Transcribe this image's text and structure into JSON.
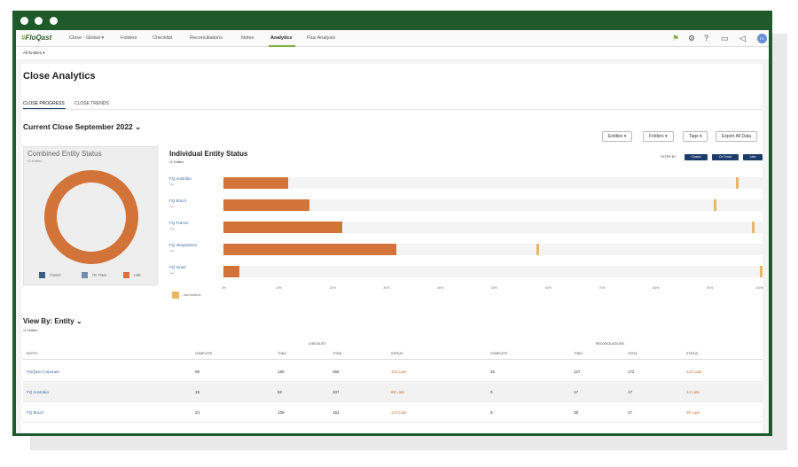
{
  "nav": {
    "logo_hash": "#",
    "logo_text": "FloQast",
    "items": [
      {
        "label": "Close - Global ▾"
      },
      {
        "label": "Folders"
      },
      {
        "label": "Checklist"
      },
      {
        "label": "Reconciliations"
      },
      {
        "label": "Notes"
      },
      {
        "label": "Analytics"
      },
      {
        "label": "Flux Analysis"
      }
    ],
    "icons": [
      "flag-icon",
      "gear-icon",
      "help-icon",
      "book-icon",
      "megaphone-icon"
    ],
    "avatar": "FL"
  },
  "subbar": {
    "entities_select": "All Entities ▾"
  },
  "page": {
    "title": "Close Analytics",
    "tabs": [
      {
        "label": "CLOSE PROGRESS"
      },
      {
        "label": "CLOSE TRENDS"
      }
    ],
    "current_close": "Current Close  September 2022 ⌄"
  },
  "buttons": {
    "entities": "Entities ▾",
    "folders": "Folders ▾",
    "tags": "Tags ▾",
    "export": "Export All Data"
  },
  "combined": {
    "title": "Combined Entity Status",
    "sub": "11 Entities",
    "legend": [
      {
        "label": "Closed",
        "color": "#3f5d86"
      },
      {
        "label": "On Track",
        "color": "#6f8fb3"
      },
      {
        "label": "Late",
        "color": "#d2733a"
      }
    ],
    "donut_color": "#d2733a"
  },
  "individual": {
    "title": "Individual Entity Status",
    "sub": "11 Entities",
    "filter_label": "FILTER BY",
    "chips": [
      "Closed",
      "On Track",
      "Late"
    ],
    "entities": [
      {
        "name": "FQ Australia",
        "status": "Late",
        "progress": 12,
        "last_deadline": 95
      },
      {
        "name": "FQ Brazil",
        "status": "Late",
        "progress": 16,
        "last_deadline": 91
      },
      {
        "name": "FQ France",
        "status": "Late",
        "progress": 22,
        "last_deadline": 98
      },
      {
        "name": "FQ Integrations",
        "status": "Late",
        "progress": 32,
        "last_deadline": 58
      },
      {
        "name": "FQ Israel",
        "status": "Late",
        "progress": 3,
        "last_deadline": 100
      }
    ],
    "x_ticks": [
      "0%",
      "10%",
      "20%",
      "30%",
      "40%",
      "50%",
      "60%",
      "70%",
      "80%",
      "90%",
      "100%"
    ],
    "last_deadline_label": "last deadline",
    "fill_color": "#d2733a",
    "marker_color": "#e8b665"
  },
  "viewby": {
    "title": "View By: Entity ⌄",
    "sub": "11 Entities",
    "group_checklist": "CHECKLIST",
    "group_recs": "RECONCILIATIONS",
    "columns": [
      "ENTITY",
      "COMPLETE",
      "TODO",
      "TOTAL",
      "STATUS",
      "COMPLETE",
      "TODO",
      "TOTAL",
      "STATUS"
    ],
    "rows": [
      [
        "FloQast Corporate",
        "99",
        "159",
        "258",
        "103 Late",
        "45",
        "127",
        "172",
        "120 Late"
      ],
      [
        "FQ Australia",
        "15",
        "92",
        "107",
        "88 Late",
        "0",
        "17",
        "17",
        "14 Late"
      ],
      [
        "FQ Brazil",
        "24",
        "139",
        "163",
        "123 Late",
        "9",
        "38",
        "47",
        "36 Late"
      ]
    ]
  }
}
